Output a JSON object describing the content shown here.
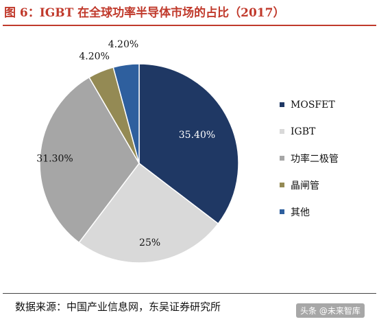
{
  "title": "图 6：IGBT 在全球功率半导体市场的占比（2017）",
  "source": "数据来源：中国产业信息网，东吴证券研究所",
  "watermark": "头条 @未来智库",
  "chart_data": {
    "type": "pie",
    "title": "",
    "categories": [
      "MOSFET",
      "IGBT",
      "功率二极管",
      "晶闸管",
      "其他"
    ],
    "values": [
      35.4,
      25.0,
      31.3,
      4.2,
      4.2
    ],
    "labels": [
      "35.40%",
      "25%",
      "31.30%",
      "4.20%",
      "4.20%"
    ],
    "colors": [
      "#1f3864",
      "#d9d9d9",
      "#a6a6a6",
      "#948a54",
      "#2e5f9e"
    ],
    "start_angle_deg": 0,
    "direction": "clockwise",
    "legend_position": "right"
  }
}
